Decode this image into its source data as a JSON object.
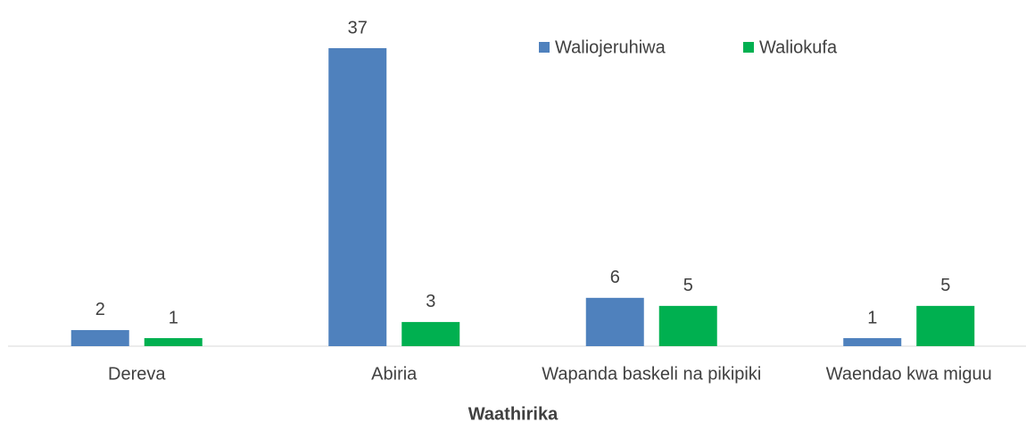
{
  "chart_data": {
    "type": "bar",
    "x_label": "Waathirika",
    "categories": [
      "Dereva",
      "Abiria",
      "Wapanda baskeli na pikipiki",
      "Waendao kwa miguu"
    ],
    "series": [
      {
        "name": "Waliojeruhiwa",
        "color": "#4f81bd",
        "values": [
          2,
          37,
          6,
          1
        ]
      },
      {
        "name": "Waliokufa",
        "color": "#00b050",
        "values": [
          1,
          3,
          5,
          5
        ]
      }
    ],
    "legend": "top-right"
  }
}
